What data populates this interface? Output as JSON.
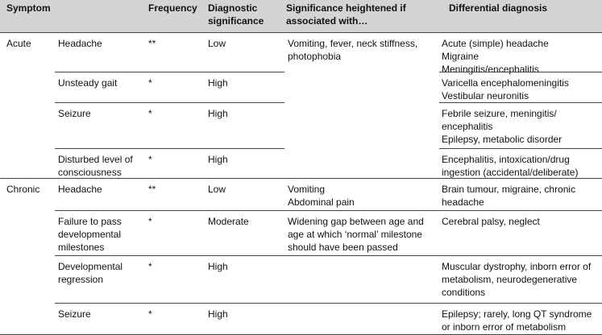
{
  "table": {
    "header": [
      "Symptom",
      "Frequency",
      "Diagnostic significance",
      "Significance heightened if associated with…",
      "Differential diagnosis"
    ],
    "groups": [
      {
        "label": "Acute",
        "rows": [
          {
            "symptom": [
              "Headache"
            ],
            "frequency": "**",
            "significance": "Low",
            "associated": [
              "Vomiting, fever, neck stiffness,",
              "photophobia"
            ],
            "differential": [
              "Acute (simple) headache",
              "Migraine",
              "Meningitis/encephalitis"
            ]
          },
          {
            "symptom": [
              "Unsteady gait"
            ],
            "frequency": "*",
            "significance": "High",
            "differential": [
              "Varicella encephalomeningitis",
              "Vestibular neuronitis"
            ]
          },
          {
            "symptom": [
              "Seizure"
            ],
            "frequency": "*",
            "significance": "High",
            "differential": [
              "Febrile seizure, meningitis/",
              "encephalitis",
              "Epilepsy, metabolic disorder"
            ]
          },
          {
            "symptom": [
              "Disturbed level of",
              "consciousness"
            ],
            "frequency": "*",
            "significance": "High",
            "differential": [
              "Encephalitis, intoxication/drug",
              "ingestion (accidental/deliberate)"
            ]
          }
        ]
      },
      {
        "label": "Chronic",
        "rows": [
          {
            "symptom": [
              "Headache"
            ],
            "frequency": "**",
            "significance": "Low",
            "associated": [
              "Vomiting",
              "Abdominal pain"
            ],
            "differential": [
              "Brain tumour, migraine, chronic",
              "headache"
            ]
          },
          {
            "symptom": [
              "Failure to pass",
              "developmental",
              "milestones"
            ],
            "frequency": "*",
            "significance": "Moderate",
            "associated": [
              "Widening gap between age and",
              "age at which ‘normal’ milestone",
              "should have been passed"
            ],
            "differential": [
              "Cerebral palsy, neglect"
            ]
          },
          {
            "symptom": [
              "Developmental",
              "regression"
            ],
            "frequency": "*",
            "significance": "High",
            "differential": [
              "Muscular dystrophy, inborn error of",
              "metabolism, neurodegenerative",
              "conditions"
            ]
          },
          {
            "symptom": [
              "Seizure"
            ],
            "frequency": "*",
            "significance": "High",
            "differential": [
              "Epilepsy; rarely, long QT syndrome",
              "or inborn error of metabolism"
            ]
          }
        ]
      }
    ]
  }
}
